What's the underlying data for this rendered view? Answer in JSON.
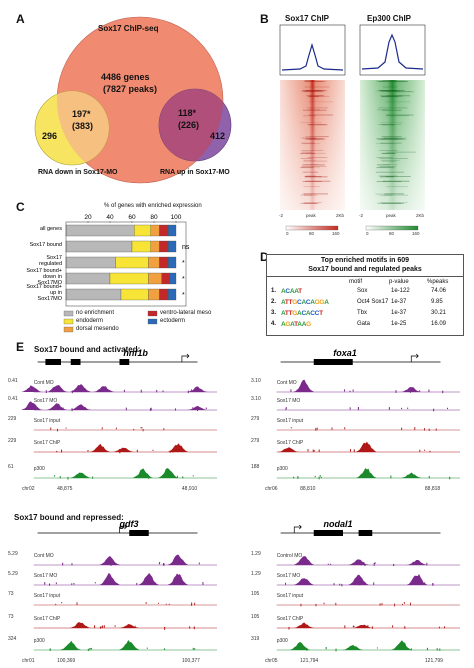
{
  "panels": {
    "a": "A",
    "b": "B",
    "c": "C",
    "d": "D",
    "e": "E"
  },
  "venn": {
    "title": "Sox17 ChIP-seq",
    "center_genes": "4486 genes",
    "center_peaks": "(7827 peaks)",
    "left_overlap": "197*",
    "left_overlap_peaks": "(383)",
    "right_overlap": "118*",
    "right_overlap_peaks": "(226)",
    "left_only": "296",
    "right_only": "412",
    "left_label": "RNA down in Sox17-MO",
    "right_label": "RNA up in Sox17-MO",
    "colors": {
      "big": "#f08a70",
      "left": "#f7e45a",
      "right": "#8a5aa8"
    }
  },
  "heatmap": {
    "sox17_title": "Sox17 ChIP",
    "ep300_title": "Ep300 ChIP",
    "peak_label": "peak",
    "x_left": "-2",
    "x_right": "2Kb",
    "sox17_scale": [
      "0",
      "80",
      "160"
    ],
    "ep300_scale": [
      "0",
      "80",
      "160"
    ],
    "colors": {
      "sox17": "#c62a1e",
      "ep300": "#1e8a2e"
    }
  },
  "chart_data": {
    "type": "bar",
    "title": "% of genes with enriched expression",
    "xticks": [
      "20",
      "40",
      "60",
      "80",
      "100"
    ],
    "categories": [
      "all genes",
      "Sox17 bound",
      "Sox17 regulated",
      "Sox17 bound+ down in Sox17MO",
      "Sox17 bound+ up in Sox17MO"
    ],
    "series": [
      {
        "name": "no enrichment",
        "color": "#b8b8b8",
        "values": [
          62,
          60,
          45,
          40,
          50
        ]
      },
      {
        "name": "endoderm",
        "color": "#f7e437",
        "values": [
          15,
          17,
          30,
          35,
          25
        ]
      },
      {
        "name": "dorsal mesendo",
        "color": "#f0a040",
        "values": [
          8,
          8,
          10,
          12,
          10
        ]
      },
      {
        "name": "ventro-lateral meso",
        "color": "#c0282a",
        "values": [
          8,
          8,
          8,
          7,
          8
        ]
      },
      {
        "name": "ectoderm",
        "color": "#2a6ab8",
        "values": [
          7,
          7,
          7,
          6,
          7
        ]
      }
    ],
    "significance": [
      "",
      "ns",
      "*",
      "*",
      "*"
    ]
  },
  "motifs": {
    "title1": "Top enriched motifs in 609",
    "title2": "Sox17 bound and regulated peaks",
    "headers": [
      "motif",
      "p-value",
      "%peaks"
    ],
    "rows": [
      {
        "num": "1.",
        "logo": "ACAAT",
        "name": "Sox",
        "pval": "1e-122",
        "pct": "74.06"
      },
      {
        "num": "2.",
        "logo": "ATTGCACAGGA",
        "name": "Oct4 Sox17",
        "pval": "1e-37",
        "pct": "9.85"
      },
      {
        "num": "3.",
        "logo": "ATTGACACCT",
        "name": "Tbx",
        "pval": "1e-37",
        "pct": "30.21"
      },
      {
        "num": "4.",
        "logo": "AGATAAG",
        "name": "Gata",
        "pval": "1e-25",
        "pct": "16.09"
      }
    ]
  },
  "tracks": {
    "activated_title": "Sox17 bound and activated:",
    "repressed_title": "Sox17 bound and repressed:",
    "hnf1b": {
      "gene": "hnf1b",
      "labels": [
        "Cont MO",
        "Sox17 MO",
        "Sox17 input",
        "Sox17 ChIP",
        "p300"
      ],
      "scales": [
        "0.41",
        "0.41",
        "229",
        "229",
        "61"
      ],
      "chrom": "chr02",
      "coords": [
        "48,875",
        "48,910"
      ]
    },
    "foxa1": {
      "gene": "foxa1",
      "labels": [
        "Cont MO",
        "Sox17 MO",
        "Sox17 input",
        "Sox17 ChIP",
        "p300"
      ],
      "scales": [
        "3.10",
        "3.10",
        "279",
        "279",
        "188"
      ],
      "chrom": "chr06",
      "coords": [
        "88,810",
        "88,818"
      ]
    },
    "gdf3": {
      "gene": "gdf3",
      "labels": [
        "Cont MO",
        "Sox17 MO",
        "Sox17 input",
        "Sox17 ChIP",
        "p300"
      ],
      "scales": [
        "5.29",
        "5.29",
        "73",
        "73",
        "324"
      ],
      "chrom": "chr01",
      "coords": [
        "100,369",
        "100,377"
      ]
    },
    "nodal1": {
      "gene": "nodal1",
      "labels": [
        "Control MO",
        "Sox17 MO",
        "Sox17 input",
        "Sox17 ChIP",
        "p300"
      ],
      "scales": [
        "1.29",
        "1.29",
        "105",
        "105",
        "319"
      ],
      "chrom": "chr05",
      "coords": [
        "121,794",
        "121,799"
      ]
    }
  }
}
